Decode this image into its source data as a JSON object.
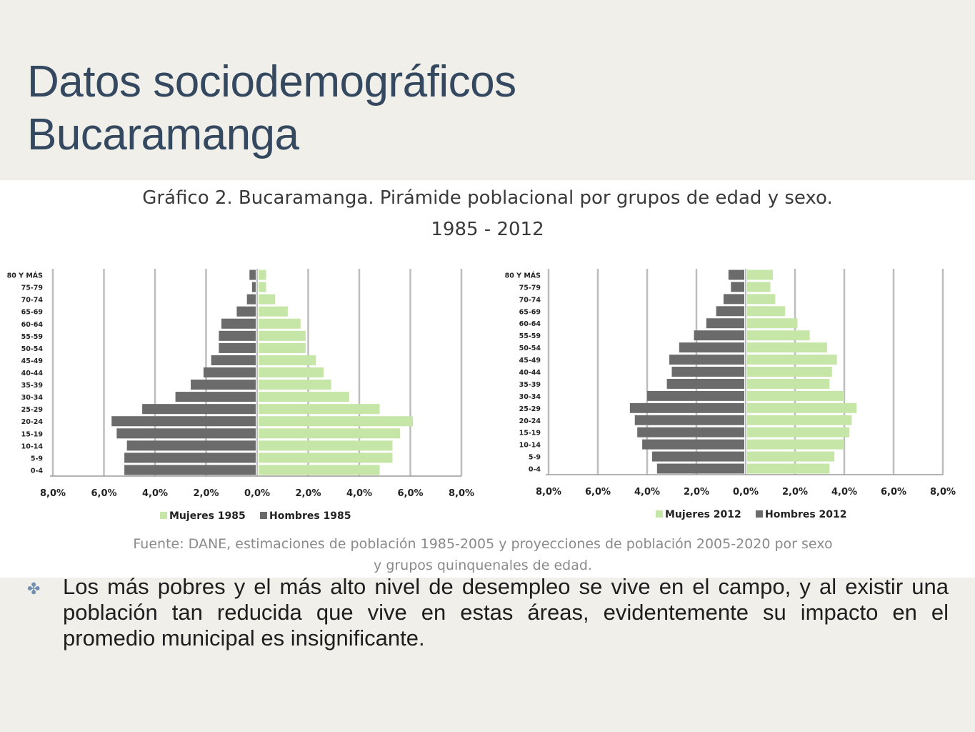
{
  "slide": {
    "title_line1": "Datos sociodemográficos",
    "title_line2": "Bucaramanga",
    "bullet_icon": "flower-bullet-icon",
    "bullet_text": "Los más pobres y el más alto nivel de desempleo se vive en el campo, y al existir una población tan reducida que vive en estas áreas, evidentemente su impacto en el promedio municipal es insignificante."
  },
  "colors": {
    "background": "#f1efea",
    "title": "#34485f",
    "mujeres": "#c5e6a6",
    "hombres": "#6b6b6b"
  },
  "chart_data": {
    "type": "bar",
    "title": "Gráfico 2. Bucaramanga. Pirámide poblacional por grupos de edad y sexo.",
    "subtitle": "1985 - 2012",
    "source_line1": "Fuente: DANE, estimaciones de población 1985-2005  y proyecciones de población 2005-2020 por sexo",
    "source_line2": "y grupos quinquenales de edad.",
    "charts": [
      {
        "type": "bar",
        "orientation": "horizontal",
        "categories": [
          "0-4",
          "5-9",
          "10-14",
          "15-19",
          "20-24",
          "25-29",
          "30-34",
          "35-39",
          "40-44",
          "45-49",
          "50-54",
          "55-59",
          "60-64",
          "65-69",
          "70-74",
          "75-79",
          "80 Y MÁS"
        ],
        "series": [
          {
            "name": "Mujeres 1985",
            "values": [
              4.8,
              5.3,
              5.3,
              5.6,
              6.1,
              4.8,
              3.6,
              2.9,
              2.6,
              2.3,
              1.9,
              1.9,
              1.7,
              1.2,
              0.7,
              0.35,
              0.35
            ]
          },
          {
            "name": "Hombres 1985",
            "values": [
              5.2,
              5.2,
              5.1,
              5.5,
              5.7,
              4.5,
              3.2,
              2.6,
              2.1,
              1.8,
              1.5,
              1.5,
              1.4,
              0.8,
              0.4,
              0.2,
              0.3
            ]
          }
        ],
        "xlim": [
          -8,
          8
        ],
        "xticks": [
          "8,0%",
          "6,0%",
          "4,0%",
          "2,0%",
          "0,0%",
          "2,0%",
          "4,0%",
          "6,0%",
          "8,0%"
        ],
        "legend_position": "bottom",
        "grid": true
      },
      {
        "type": "bar",
        "orientation": "horizontal",
        "categories": [
          "0-4",
          "5-9",
          "10-14",
          "15-19",
          "20-24",
          "25-29",
          "30-34",
          "35-39",
          "40-44",
          "45-49",
          "50-54",
          "55-59",
          "60-64",
          "65-69",
          "70-74",
          "75-79",
          "80 Y MÁS"
        ],
        "series": [
          {
            "name": "Mujeres 2012",
            "values": [
              3.4,
              3.6,
              4.0,
              4.2,
              4.3,
              4.5,
              4.0,
              3.4,
              3.5,
              3.7,
              3.3,
              2.6,
              2.1,
              1.6,
              1.2,
              1.0,
              1.1
            ]
          },
          {
            "name": "Hombres 2012",
            "values": [
              3.6,
              3.8,
              4.2,
              4.4,
              4.5,
              4.7,
              4.0,
              3.2,
              3.0,
              3.1,
              2.7,
              2.1,
              1.6,
              1.2,
              0.9,
              0.6,
              0.7
            ]
          }
        ],
        "xlim": [
          -8,
          8
        ],
        "xticks": [
          "8,0%",
          "6,0%",
          "4,0%",
          "2,0%",
          "0,0%",
          "2,0%",
          "4,0%",
          "6,0%",
          "8,0%"
        ],
        "legend_position": "bottom",
        "grid": true
      }
    ]
  }
}
